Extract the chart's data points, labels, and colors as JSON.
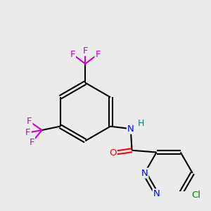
{
  "bg_color": "#ebebeb",
  "atom_colors": {
    "C": "#000000",
    "H": "#008080",
    "N": "#0000ff",
    "O": "#ff0000",
    "F": "#cc00cc",
    "Cl": "#008000"
  }
}
